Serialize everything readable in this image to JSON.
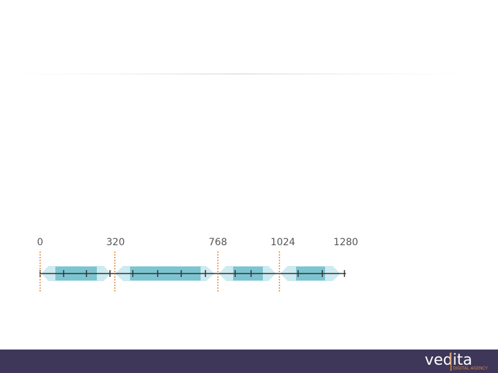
{
  "breakpoints": {
    "labels": [
      "0",
      "320",
      "768",
      "1024",
      "1280"
    ]
  },
  "footer": {
    "logo": "vedita",
    "tagline": "DIGITAL AGENCY"
  }
}
